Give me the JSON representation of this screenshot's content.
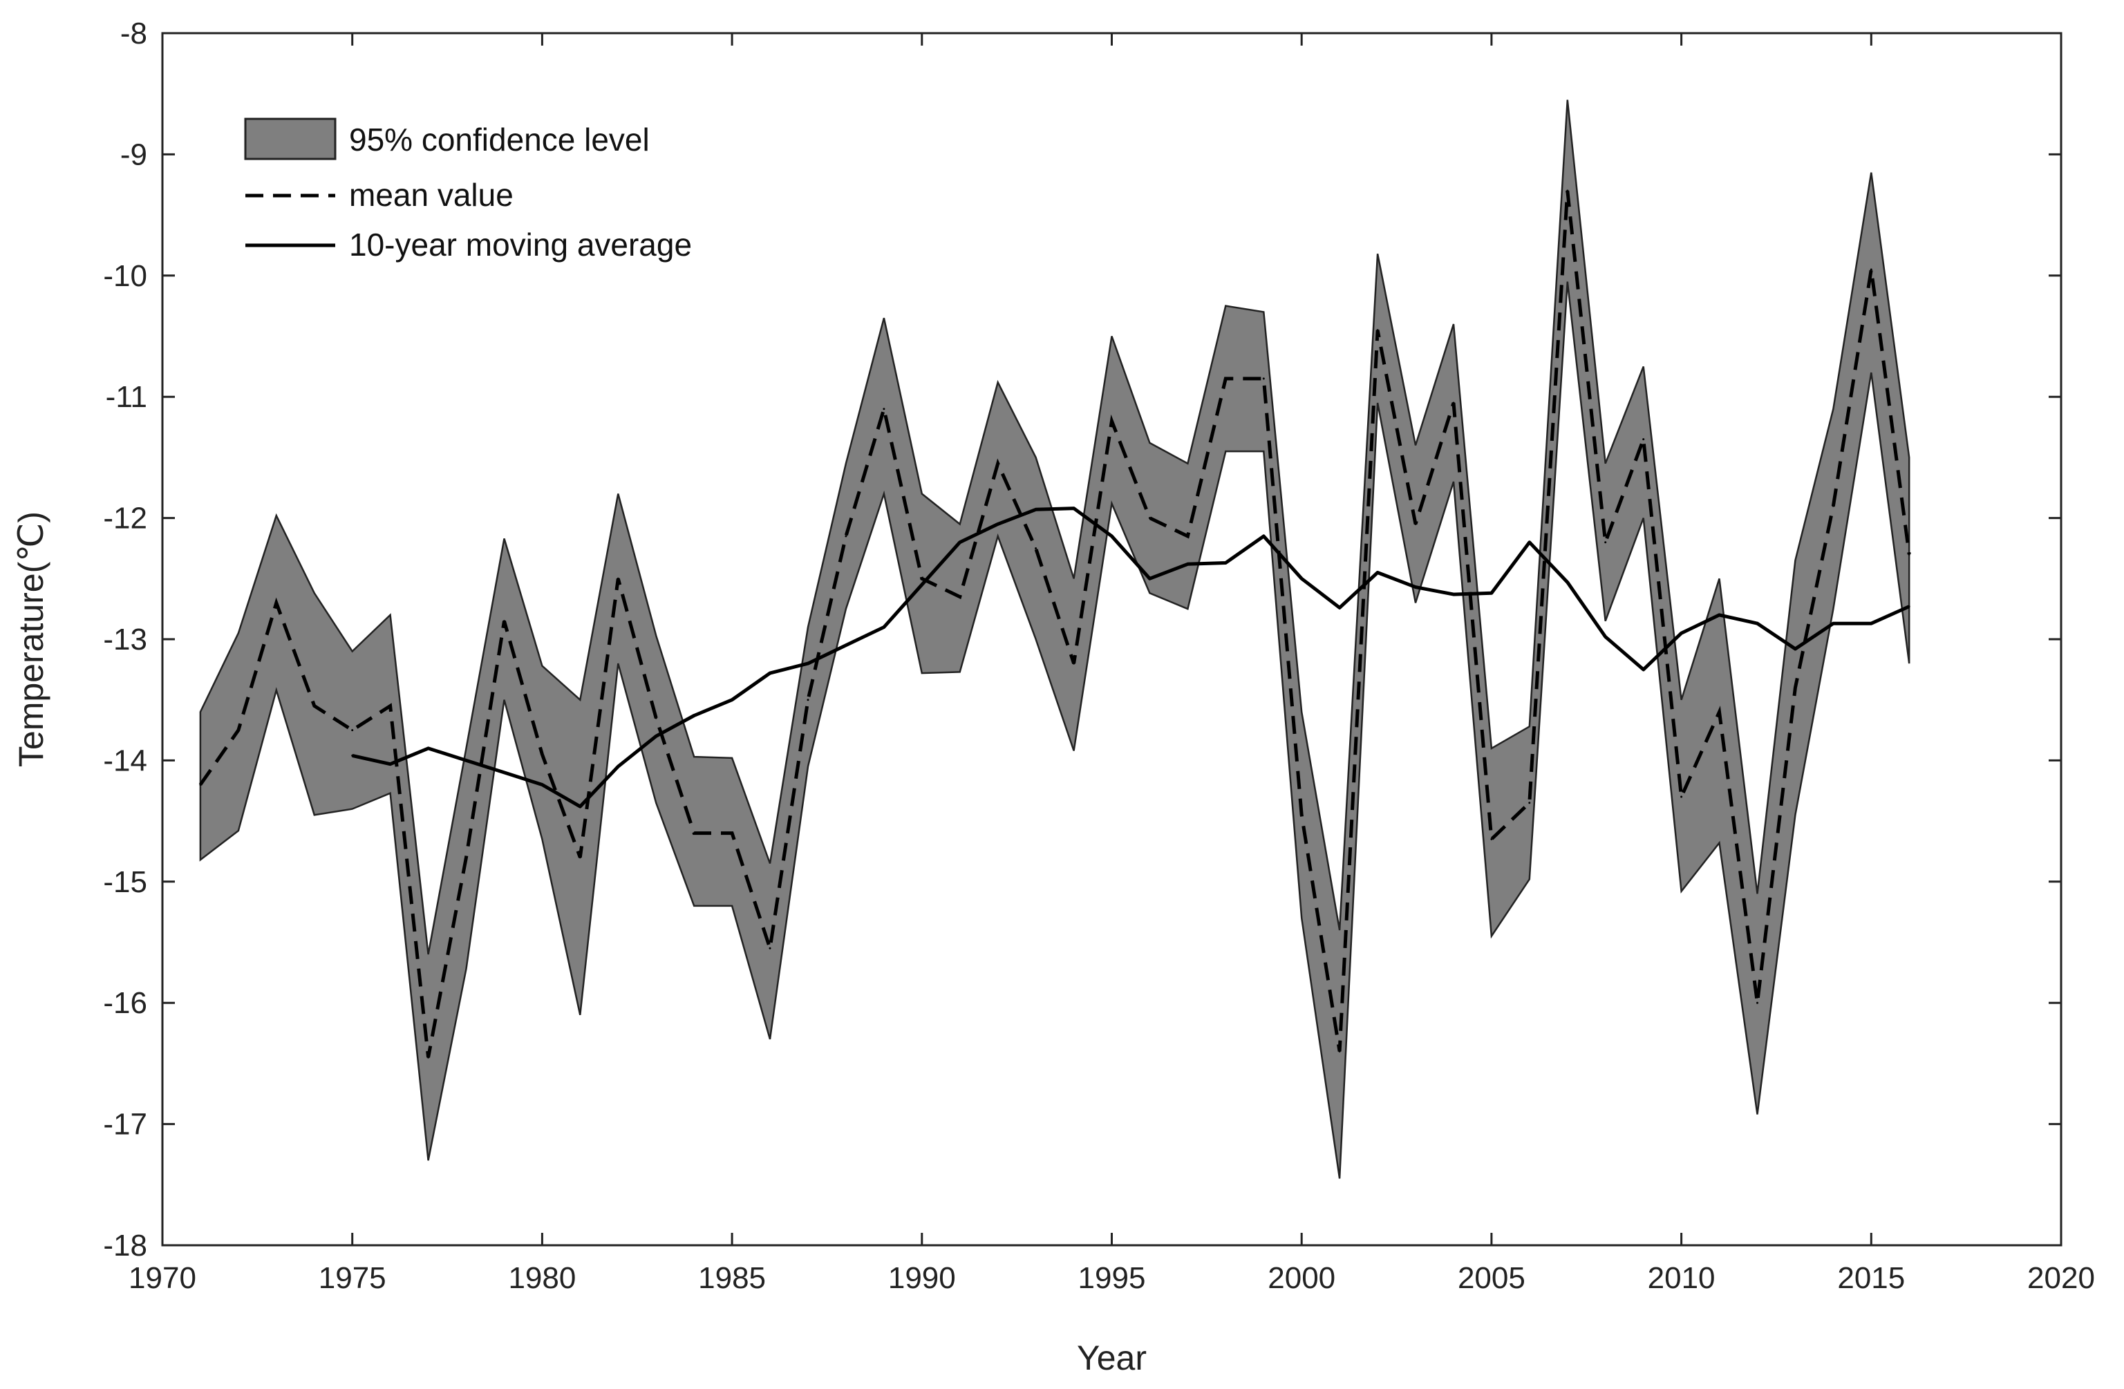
{
  "chart_data": {
    "type": "line",
    "title": "",
    "xlabel": "Year",
    "ylabel": "Temperature(℃)",
    "xlim": [
      1970,
      2020
    ],
    "ylim": [
      -18,
      -8
    ],
    "xticks": [
      1970,
      1975,
      1980,
      1985,
      1990,
      1995,
      2000,
      2005,
      2010,
      2015,
      2020
    ],
    "yticks": [
      -8,
      -9,
      -10,
      -11,
      -12,
      -13,
      -14,
      -15,
      -16,
      -17,
      -18
    ],
    "grid": false,
    "legend_position": "top-left",
    "colors": {
      "band_fill": "#7f7f7f",
      "band_edge": "#222222",
      "line": "#000000",
      "axis": "#222222"
    },
    "x": [
      1971,
      1972,
      1973,
      1974,
      1975,
      1976,
      1977,
      1978,
      1979,
      1980,
      1981,
      1982,
      1983,
      1984,
      1985,
      1986,
      1987,
      1988,
      1989,
      1990,
      1991,
      1992,
      1993,
      1994,
      1995,
      1996,
      1997,
      1998,
      1999,
      2000,
      2001,
      2002,
      2003,
      2004,
      2005,
      2006,
      2007,
      2008,
      2009,
      2010,
      2011,
      2012,
      2013,
      2014,
      2015,
      2016
    ],
    "series": [
      {
        "name": "95% confidence level",
        "kind": "band",
        "upper": [
          -13.6,
          -12.95,
          -11.98,
          -12.62,
          -13.1,
          -12.8,
          -15.6,
          -13.9,
          -12.17,
          -13.22,
          -13.5,
          -11.8,
          -12.97,
          -13.97,
          -13.98,
          -14.85,
          -12.9,
          -11.55,
          -10.35,
          -11.8,
          -12.05,
          -10.88,
          -11.5,
          -12.5,
          -10.5,
          -11.38,
          -11.55,
          -10.25,
          -10.3,
          -13.6,
          -15.4,
          -9.82,
          -11.4,
          -10.4,
          -13.9,
          -13.72,
          -8.55,
          -11.55,
          -10.75,
          -13.5,
          -12.5,
          -15.1,
          -12.35,
          -11.1,
          -9.15,
          -11.5
        ],
        "lower": [
          -14.82,
          -14.58,
          -13.42,
          -14.45,
          -14.4,
          -14.27,
          -17.3,
          -15.72,
          -13.5,
          -14.65,
          -16.1,
          -13.2,
          -14.35,
          -15.2,
          -15.2,
          -16.3,
          -14.05,
          -12.75,
          -11.8,
          -13.28,
          -13.27,
          -12.15,
          -13.0,
          -13.92,
          -11.88,
          -12.62,
          -12.75,
          -11.45,
          -11.45,
          -15.3,
          -17.45,
          -11.05,
          -12.7,
          -11.7,
          -15.45,
          -14.98,
          -10.05,
          -12.85,
          -12.0,
          -15.08,
          -14.68,
          -16.92,
          -14.45,
          -12.75,
          -10.8,
          -13.2
        ]
      },
      {
        "name": "mean value",
        "kind": "line",
        "dash": "dashed",
        "values": [
          -14.2,
          -13.75,
          -12.7,
          -13.55,
          -13.75,
          -13.55,
          -16.45,
          -14.8,
          -12.85,
          -13.95,
          -14.8,
          -12.5,
          -13.65,
          -14.6,
          -14.6,
          -15.55,
          -13.5,
          -12.15,
          -11.1,
          -12.5,
          -12.65,
          -11.55,
          -12.25,
          -13.2,
          -11.2,
          -12.0,
          -12.15,
          -10.85,
          -10.85,
          -14.45,
          -16.4,
          -10.45,
          -12.05,
          -11.05,
          -14.65,
          -14.35,
          -9.3,
          -12.2,
          -11.35,
          -14.3,
          -13.6,
          -16.0,
          -13.4,
          -11.9,
          -9.95,
          -12.3
        ]
      },
      {
        "name": "10-year moving average",
        "kind": "line",
        "dash": "solid",
        "x": [
          1975,
          1976,
          1977,
          1978,
          1979,
          1980,
          1981,
          1982,
          1983,
          1984,
          1985,
          1986,
          1987,
          1988,
          1989,
          1990,
          1991,
          1992,
          1993,
          1994,
          1995,
          1996,
          1997,
          1998,
          1999,
          2000,
          2001,
          2002,
          2003,
          2004,
          2005,
          2006,
          2007,
          2008,
          2009,
          2010,
          2011,
          2012,
          2013,
          2014,
          2015,
          2016
        ],
        "values": [
          -13.96,
          -14.03,
          -13.9,
          -14.0,
          -14.1,
          -14.2,
          -14.38,
          -14.05,
          -13.8,
          -13.63,
          -13.5,
          -13.28,
          -13.2,
          -13.05,
          -12.9,
          -12.55,
          -12.2,
          -12.05,
          -11.93,
          -11.92,
          -12.15,
          -12.5,
          -12.38,
          -12.37,
          -12.15,
          -12.5,
          -12.74,
          -12.45,
          -12.57,
          -12.63,
          -12.62,
          -12.2,
          -12.53,
          -12.98,
          -13.25,
          -12.95,
          -12.8,
          -12.87,
          -13.08,
          -12.87,
          -12.87,
          -12.73
        ]
      }
    ]
  }
}
